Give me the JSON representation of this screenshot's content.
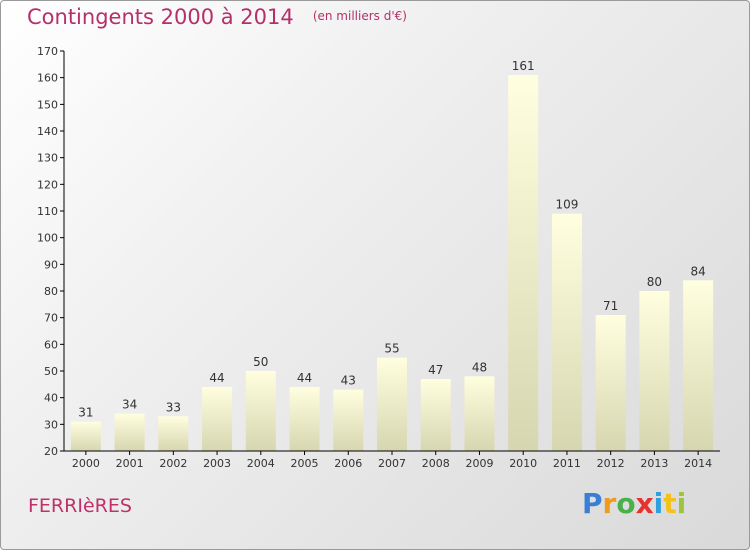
{
  "header": {
    "title": "Contingents 2000 à 2014",
    "subtitle": "(en milliers d'€)"
  },
  "footer": {
    "commune": "FERRIèRES",
    "logo_letters": [
      "P",
      "r",
      "o",
      "x",
      "i",
      "t",
      "i"
    ],
    "logo_colors": [
      "#3a7fd5",
      "#f09a1e",
      "#4bb04a",
      "#e8302d",
      "#2f9fe0",
      "#f2c21b",
      "#9bc53d"
    ]
  },
  "chart_data": {
    "type": "bar",
    "categories": [
      "2000",
      "2001",
      "2002",
      "2003",
      "2004",
      "2005",
      "2006",
      "2007",
      "2008",
      "2009",
      "2010",
      "2011",
      "2012",
      "2013",
      "2014"
    ],
    "values": [
      31,
      34,
      33,
      44,
      50,
      44,
      43,
      55,
      47,
      48,
      161,
      109,
      71,
      80,
      84
    ],
    "ylim": [
      20,
      170
    ],
    "yticks": [
      20,
      30,
      40,
      50,
      60,
      70,
      80,
      90,
      100,
      110,
      120,
      130,
      140,
      150,
      160,
      170
    ],
    "grid": false,
    "colors": {
      "bar_top": "#ffffe0",
      "bar_bottom": "#d6d6b0",
      "axis": "#000000",
      "text": "#333333"
    }
  }
}
